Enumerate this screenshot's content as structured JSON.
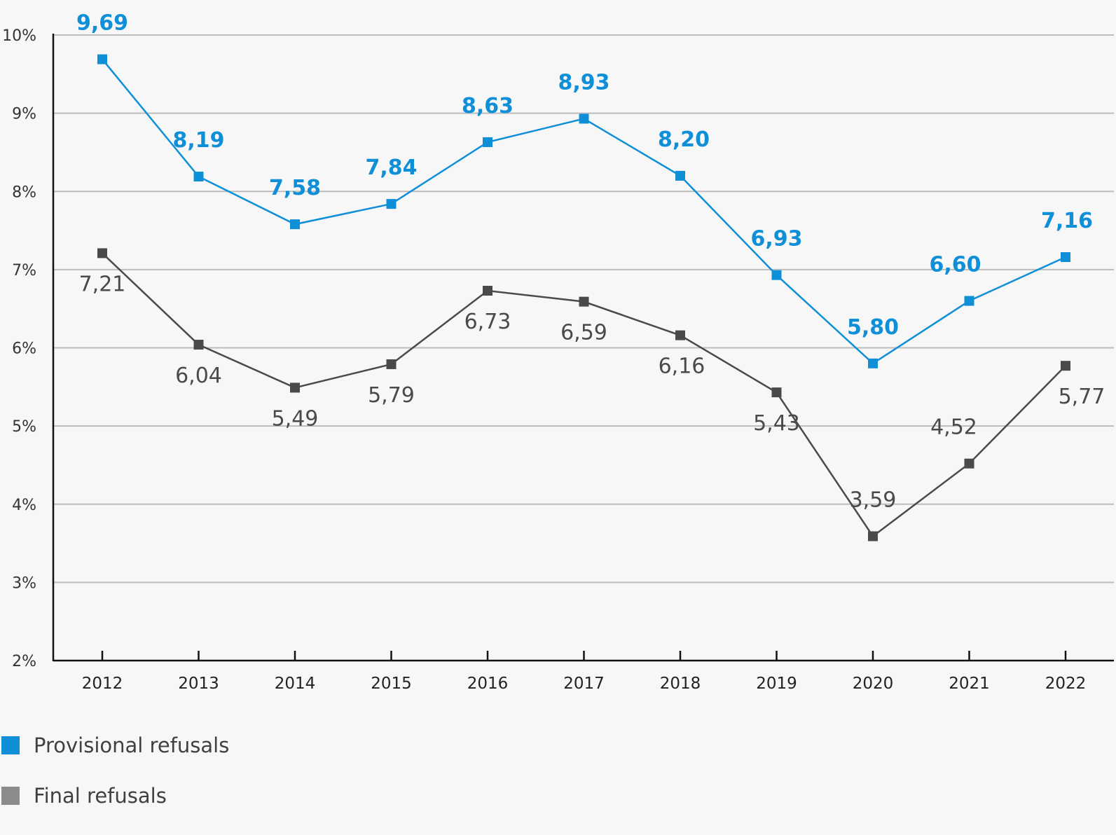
{
  "chart_data": {
    "type": "line",
    "categories": [
      "2012",
      "2013",
      "2014",
      "2015",
      "2016",
      "2017",
      "2018",
      "2019",
      "2020",
      "2021",
      "2022"
    ],
    "y_ticks": [
      "2%",
      "3%",
      "4%",
      "5%",
      "6%",
      "7%",
      "8%",
      "9%",
      "10%"
    ],
    "ylim": [
      2,
      10
    ],
    "grid": true,
    "legend_position": "bottom-left",
    "series": [
      {
        "name": "Provisional refusals",
        "color": "#0f8fd8",
        "values": [
          9.69,
          8.19,
          7.58,
          7.84,
          8.63,
          8.93,
          8.2,
          6.93,
          5.8,
          6.6,
          7.16
        ],
        "labels": [
          "9,69",
          "8,19",
          "7,58",
          "7,84",
          "8,63",
          "8,93",
          "8,20",
          "6,93",
          "5,80",
          "6,60",
          "7,16"
        ]
      },
      {
        "name": "Final refusals",
        "color": "#4a4a4a",
        "legend_color": "#8c8c8c",
        "values": [
          7.21,
          6.04,
          5.49,
          5.79,
          6.73,
          6.59,
          6.16,
          5.43,
          3.59,
          4.52,
          5.77
        ],
        "labels": [
          "7,21",
          "6,04",
          "5,49",
          "5,79",
          "6,73",
          "6,59",
          "6,16",
          "5,43",
          "3,59",
          "4,52",
          "5,77"
        ]
      }
    ]
  }
}
